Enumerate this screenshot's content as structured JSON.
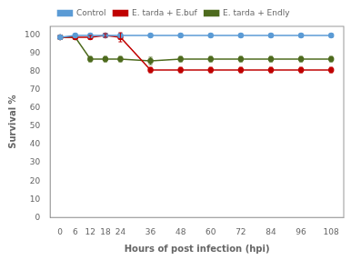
{
  "chart_data": {
    "type": "line",
    "xlabel": "Hours of post infection (hpi)",
    "ylabel": "Survival %",
    "x": [
      0,
      6,
      12,
      18,
      24,
      36,
      48,
      60,
      72,
      84,
      96,
      108
    ],
    "series": [
      {
        "name": "Control",
        "color": "#5b9bd5",
        "marker": "circle",
        "values": [
          99,
          100,
          100,
          100,
          100,
          100,
          100,
          100,
          100,
          100,
          100,
          100
        ],
        "errors": [
          0,
          0,
          0,
          0,
          0,
          0,
          0,
          0,
          0,
          0,
          0,
          0
        ]
      },
      {
        "name": "E. tarda + E.buf",
        "color": "#c00000",
        "marker": "circle",
        "values": [
          99,
          99,
          99,
          100,
          99,
          81,
          81,
          81,
          81,
          81,
          81,
          81
        ],
        "errors": [
          0,
          0,
          1,
          1,
          2.5,
          1.5,
          1.5,
          1.5,
          1.5,
          1.5,
          1.5,
          1.5
        ]
      },
      {
        "name": "E. tarda + Endly",
        "color": "#4e6b1e",
        "marker": "circle",
        "values": [
          99,
          99,
          87,
          87,
          87,
          86,
          87,
          87,
          87,
          87,
          87,
          87
        ],
        "errors": [
          0,
          0,
          1.5,
          1.5,
          1.5,
          2,
          1.5,
          1.5,
          1.5,
          1.5,
          1.5,
          1.5
        ]
      }
    ],
    "xlim": [
      -4,
      113
    ],
    "xticks": [
      0,
      6,
      12,
      18,
      24,
      36,
      48,
      60,
      72,
      84,
      96,
      108
    ],
    "ylim": [
      0,
      105
    ],
    "yticks": [
      0,
      10,
      20,
      30,
      40,
      50,
      60,
      70,
      80,
      90,
      100
    ],
    "grid": false,
    "legend": "top"
  }
}
